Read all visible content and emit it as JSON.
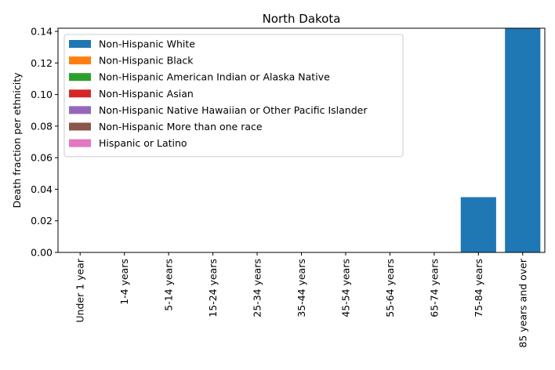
{
  "chart_data": {
    "type": "bar",
    "stacked": true,
    "title": "North Dakota",
    "xlabel": "",
    "ylabel": "Death fraction per ethnicity",
    "ylim": [
      0,
      0.142
    ],
    "yticks": [
      0.0,
      0.02,
      0.04,
      0.06,
      0.08,
      0.1,
      0.12,
      0.14
    ],
    "ytick_labels": [
      "0.00",
      "0.02",
      "0.04",
      "0.06",
      "0.08",
      "0.10",
      "0.12",
      "0.14"
    ],
    "grid": false,
    "legend_position": "top-left",
    "categories": [
      "Under 1 year",
      "1-4 years",
      "5-14 years",
      "15-24 years",
      "25-34 years",
      "35-44 years",
      "45-54 years",
      "55-64 years",
      "65-74 years",
      "75-84 years",
      "85 years and over"
    ],
    "series": [
      {
        "name": "Non-Hispanic White",
        "color": "#1f77b4",
        "values": [
          0,
          0,
          0,
          0,
          0,
          0,
          0,
          0,
          0,
          0.035,
          0.142
        ]
      },
      {
        "name": "Non-Hispanic Black",
        "color": "#ff7f0e",
        "values": [
          0,
          0,
          0,
          0,
          0,
          0,
          0,
          0,
          0,
          0,
          0
        ]
      },
      {
        "name": "Non-Hispanic American Indian or Alaska Native",
        "color": "#2ca02c",
        "values": [
          0,
          0,
          0,
          0,
          0,
          0,
          0,
          0,
          0,
          0,
          0
        ]
      },
      {
        "name": "Non-Hispanic Asian",
        "color": "#d62728",
        "values": [
          0,
          0,
          0,
          0,
          0,
          0,
          0,
          0,
          0,
          0,
          0
        ]
      },
      {
        "name": "Non-Hispanic Native Hawaiian or Other Pacific Islander",
        "color": "#9467bd",
        "values": [
          0,
          0,
          0,
          0,
          0,
          0,
          0,
          0,
          0,
          0,
          0
        ]
      },
      {
        "name": "Non-Hispanic More than one race",
        "color": "#8c564b",
        "values": [
          0,
          0,
          0,
          0,
          0,
          0,
          0,
          0,
          0,
          0,
          0
        ]
      },
      {
        "name": "Hispanic or Latino",
        "color": "#e377c2",
        "values": [
          0,
          0,
          0,
          0,
          0,
          0,
          0,
          0,
          0,
          0,
          0
        ]
      }
    ]
  }
}
